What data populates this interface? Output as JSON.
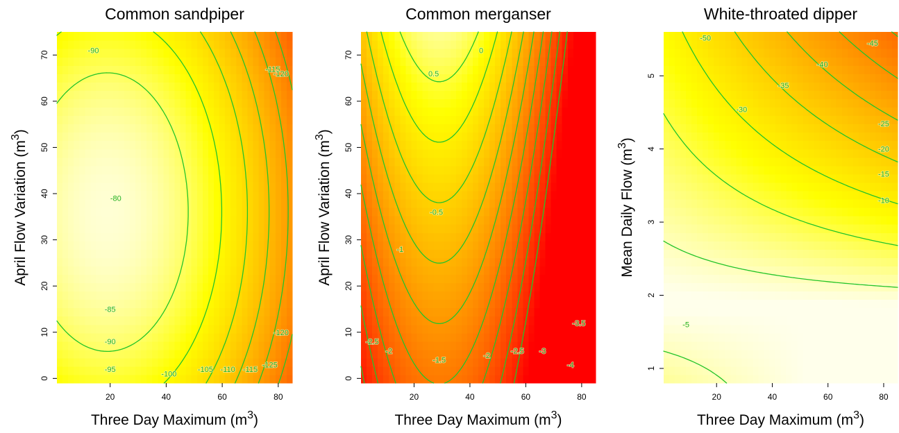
{
  "chart_data": [
    {
      "type": "heatmap",
      "title": "Common sandpiper",
      "xlabel": "Three Day Maximum (m",
      "ylabel": "April Flow Variation (m",
      "label_superscript": "3",
      "xlim": [
        1,
        85
      ],
      "ylim": [
        -1,
        75
      ],
      "x_ticks": [
        20,
        40,
        60,
        80
      ],
      "y_ticks": [
        0,
        10,
        20,
        30,
        40,
        50,
        60,
        70
      ],
      "fill_range": [
        -130,
        -79
      ],
      "contour_levels": [
        -80,
        -85,
        -90,
        -95,
        -100,
        -105,
        -110,
        -115,
        -120,
        -125
      ],
      "contour_labels": [
        {
          "text": "-90",
          "x": 14,
          "y": 71
        },
        {
          "text": "-80",
          "x": 22,
          "y": 39
        },
        {
          "text": "-85",
          "x": 20,
          "y": 15
        },
        {
          "text": "-90",
          "x": 20,
          "y": 8
        },
        {
          "text": "-95",
          "x": 20,
          "y": 2
        },
        {
          "text": "-100",
          "x": 41,
          "y": 1
        },
        {
          "text": "-105",
          "x": 54,
          "y": 2
        },
        {
          "text": "-110",
          "x": 62,
          "y": 2
        },
        {
          "text": "-115",
          "x": 70,
          "y": 2
        },
        {
          "text": "-115",
          "x": 78,
          "y": 67
        },
        {
          "text": "-120",
          "x": 81,
          "y": 66
        },
        {
          "text": "-120",
          "x": 81,
          "y": 10
        },
        {
          "text": "-125",
          "x": 77,
          "y": 3
        }
      ]
    },
    {
      "type": "heatmap",
      "title": "Common merganser",
      "xlabel": "Three Day Maximum (m",
      "ylabel": "April Flow Variation (m",
      "label_superscript": "3",
      "xlim": [
        1,
        85
      ],
      "ylim": [
        -1,
        75
      ],
      "x_ticks": [
        20,
        40,
        60,
        80
      ],
      "y_ticks": [
        0,
        10,
        20,
        30,
        40,
        50,
        60,
        70
      ],
      "fill_range": [
        -4.5,
        0.8
      ],
      "contour_levels": [
        0.5,
        0,
        -0.5,
        -1,
        -1.5,
        -2,
        -2.5,
        -3,
        -3.5,
        -4
      ],
      "contour_labels": [
        {
          "text": "0",
          "x": 44,
          "y": 71
        },
        {
          "text": "0.5",
          "x": 27,
          "y": 66
        },
        {
          "text": "-0.5",
          "x": 28,
          "y": 36
        },
        {
          "text": "-1",
          "x": 15,
          "y": 28
        },
        {
          "text": "-1.5",
          "x": 29,
          "y": 4
        },
        {
          "text": "-2",
          "x": 11,
          "y": 6
        },
        {
          "text": "-2.5",
          "x": 5,
          "y": 8
        },
        {
          "text": "-2",
          "x": 46,
          "y": 5
        },
        {
          "text": "-2.5",
          "x": 57,
          "y": 6
        },
        {
          "text": "-3",
          "x": 66,
          "y": 6
        },
        {
          "text": "-3.5",
          "x": 79,
          "y": 12
        },
        {
          "text": "-4",
          "x": 76,
          "y": 3
        }
      ]
    },
    {
      "type": "heatmap",
      "title": "White-throated dipper",
      "xlabel": "Three Day Maximum (m",
      "ylabel": "Mean Daily Flow (m",
      "label_superscript": "3",
      "xlim": [
        1,
        85
      ],
      "ylim": [
        0.8,
        5.6
      ],
      "x_ticks": [
        20,
        40,
        60,
        80
      ],
      "y_ticks": [
        1,
        2,
        3,
        4,
        5
      ],
      "fill_range": [
        -52,
        -3
      ],
      "contour_levels": [
        -5,
        -10,
        -15,
        -20,
        -25,
        -30,
        -35,
        -40,
        -45,
        -50
      ],
      "contour_labels": [
        {
          "text": "-50",
          "x": 16,
          "y": 5.52
        },
        {
          "text": "-45",
          "x": 76,
          "y": 5.45
        },
        {
          "text": "-40",
          "x": 58,
          "y": 5.16
        },
        {
          "text": "-35",
          "x": 44,
          "y": 4.87
        },
        {
          "text": "-30",
          "x": 29,
          "y": 4.54
        },
        {
          "text": "-25",
          "x": 80,
          "y": 4.35
        },
        {
          "text": "-20",
          "x": 80,
          "y": 4.0
        },
        {
          "text": "-15",
          "x": 80,
          "y": 3.66
        },
        {
          "text": "-10",
          "x": 80,
          "y": 3.3
        },
        {
          "text": "-5",
          "x": 9,
          "y": 1.6
        }
      ]
    }
  ]
}
